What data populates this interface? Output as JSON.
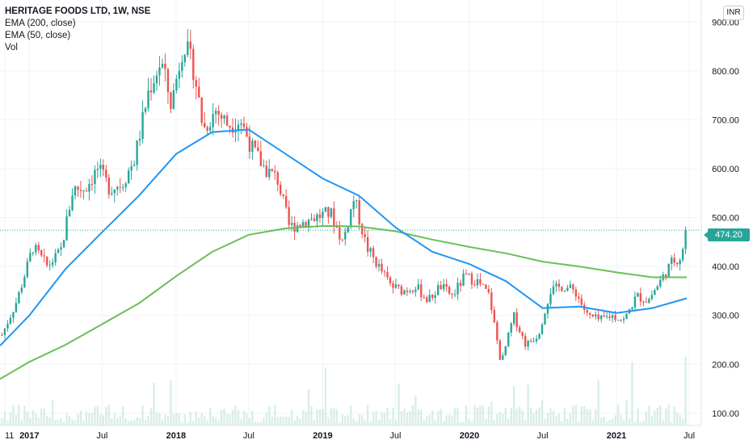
{
  "legend": {
    "title": "HERITAGE FOODS LTD, 1W, NSE",
    "ema200": "EMA (200, close)",
    "ema50": "EMA (50, close)",
    "vol": "Vol"
  },
  "currency": "INR",
  "last_price": "474.20",
  "colors": {
    "up": "#26a69a",
    "down": "#ef5350",
    "ema200": "#6bbf59",
    "ema50": "#2196f3",
    "volume": "#b9e0d4",
    "last_price_line": "#26a69a"
  },
  "chart_data": {
    "type": "candlestick",
    "title": "HERITAGE FOODS LTD, 1W, NSE",
    "y_ticks": [
      100,
      200,
      300,
      400,
      500,
      600,
      700,
      800,
      900
    ],
    "y_tick_labels": [
      "100.00",
      "200.00",
      "300.00",
      "400.00",
      "500.00",
      "600.00",
      "700.00",
      "800.00",
      "900.00"
    ],
    "ylim": [
      75,
      945
    ],
    "x_ticks": [
      {
        "date": "2016-11-01",
        "label": "11"
      },
      {
        "date": "2017-01-01",
        "label": "2017"
      },
      {
        "date": "2017-07-01",
        "label": "Jul"
      },
      {
        "date": "2018-01-01",
        "label": "2018"
      },
      {
        "date": "2018-07-01",
        "label": "Jul"
      },
      {
        "date": "2019-01-01",
        "label": "2019"
      },
      {
        "date": "2019-07-01",
        "label": "Jul"
      },
      {
        "date": "2020-01-01",
        "label": "2020"
      },
      {
        "date": "2020-07-01",
        "label": "Jul"
      },
      {
        "date": "2021-01-01",
        "label": "2021"
      },
      {
        "date": "2021-07-01",
        "label": "Jul"
      }
    ],
    "xlim": [
      "2016-10-20",
      "2021-07-31"
    ],
    "grid": true,
    "legend_position": "top-left",
    "last_price": 474.2,
    "price_path": [
      [
        "2016-10-25",
        260
      ],
      [
        "2016-12-01",
        330
      ],
      [
        "2017-01-10",
        440
      ],
      [
        "2017-02-15",
        400
      ],
      [
        "2017-03-20",
        430
      ],
      [
        "2017-04-20",
        560
      ],
      [
        "2017-05-20",
        560
      ],
      [
        "2017-06-20",
        600
      ],
      [
        "2017-07-20",
        560
      ],
      [
        "2017-08-20",
        570
      ],
      [
        "2017-09-20",
        620
      ],
      [
        "2017-10-25",
        760
      ],
      [
        "2017-11-25",
        820
      ],
      [
        "2017-12-20",
        730
      ],
      [
        "2018-01-20",
        860
      ],
      [
        "2018-02-15",
        800
      ],
      [
        "2018-03-10",
        680
      ],
      [
        "2018-04-10",
        720
      ],
      [
        "2018-05-10",
        690
      ],
      [
        "2018-06-10",
        700
      ],
      [
        "2018-07-10",
        640
      ],
      [
        "2018-08-10",
        600
      ],
      [
        "2018-09-10",
        580
      ],
      [
        "2018-10-10",
        480
      ],
      [
        "2018-11-10",
        490
      ],
      [
        "2018-12-10",
        500
      ],
      [
        "2019-01-20",
        510
      ],
      [
        "2019-02-20",
        450
      ],
      [
        "2019-03-20",
        540
      ],
      [
        "2019-04-20",
        440
      ],
      [
        "2019-05-20",
        400
      ],
      [
        "2019-06-20",
        360
      ],
      [
        "2019-07-20",
        350
      ],
      [
        "2019-08-20",
        360
      ],
      [
        "2019-09-20",
        330
      ],
      [
        "2019-10-20",
        360
      ],
      [
        "2019-11-20",
        340
      ],
      [
        "2019-12-20",
        380
      ],
      [
        "2020-01-20",
        370
      ],
      [
        "2020-02-20",
        340
      ],
      [
        "2020-03-20",
        200
      ],
      [
        "2020-04-20",
        300
      ],
      [
        "2020-05-20",
        240
      ],
      [
        "2020-06-20",
        260
      ],
      [
        "2020-07-20",
        350
      ],
      [
        "2020-08-20",
        360
      ],
      [
        "2020-09-20",
        350
      ],
      [
        "2020-10-20",
        300
      ],
      [
        "2020-11-20",
        290
      ],
      [
        "2020-12-20",
        300
      ],
      [
        "2021-01-20",
        290
      ],
      [
        "2021-02-20",
        340
      ],
      [
        "2021-03-20",
        330
      ],
      [
        "2021-04-20",
        370
      ],
      [
        "2021-05-20",
        410
      ],
      [
        "2021-06-10",
        420
      ],
      [
        "2021-06-25",
        474
      ]
    ],
    "ema50_path": [
      [
        "2016-10-20",
        238
      ],
      [
        "2017-01-01",
        300
      ],
      [
        "2017-04-01",
        395
      ],
      [
        "2017-07-01",
        470
      ],
      [
        "2017-10-01",
        545
      ],
      [
        "2018-01-01",
        630
      ],
      [
        "2018-04-01",
        675
      ],
      [
        "2018-07-01",
        680
      ],
      [
        "2018-10-01",
        630
      ],
      [
        "2019-01-01",
        580
      ],
      [
        "2019-04-01",
        545
      ],
      [
        "2019-07-01",
        480
      ],
      [
        "2019-10-01",
        430
      ],
      [
        "2020-01-01",
        405
      ],
      [
        "2020-04-01",
        370
      ],
      [
        "2020-07-01",
        315
      ],
      [
        "2020-10-01",
        318
      ],
      [
        "2021-01-01",
        305
      ],
      [
        "2021-04-01",
        315
      ],
      [
        "2021-06-25",
        335
      ]
    ],
    "ema200_path": [
      [
        "2016-10-20",
        170
      ],
      [
        "2017-01-01",
        205
      ],
      [
        "2017-04-01",
        240
      ],
      [
        "2017-07-01",
        282
      ],
      [
        "2017-10-01",
        325
      ],
      [
        "2018-01-01",
        380
      ],
      [
        "2018-04-01",
        430
      ],
      [
        "2018-07-01",
        465
      ],
      [
        "2018-10-01",
        478
      ],
      [
        "2019-01-01",
        483
      ],
      [
        "2019-04-01",
        482
      ],
      [
        "2019-07-01",
        472
      ],
      [
        "2019-10-01",
        455
      ],
      [
        "2020-01-01",
        440
      ],
      [
        "2020-04-01",
        427
      ],
      [
        "2020-07-01",
        410
      ],
      [
        "2020-10-01",
        400
      ],
      [
        "2021-01-01",
        388
      ],
      [
        "2021-04-01",
        378
      ],
      [
        "2021-06-25",
        378
      ]
    ]
  }
}
